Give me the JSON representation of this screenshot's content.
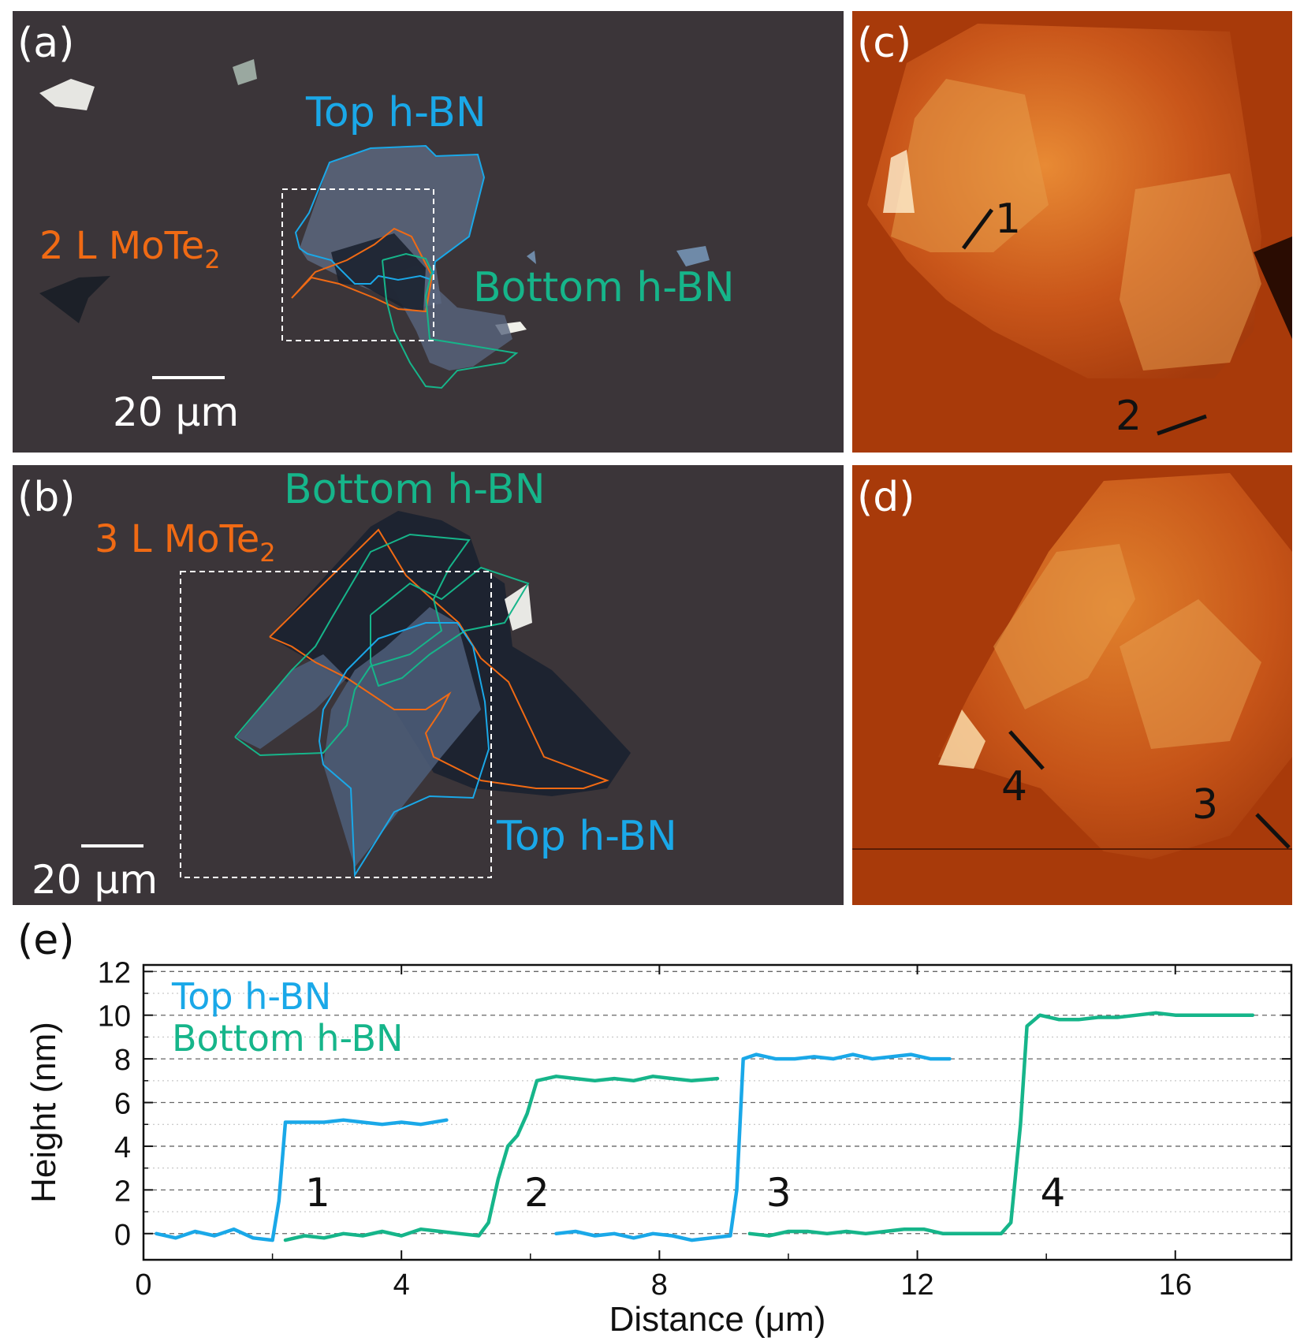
{
  "panels": {
    "a": {
      "letter": "(a)",
      "top_label": "Top h-BN",
      "mote_label": "2 L MoTe",
      "mote_sub": "2",
      "bottom_label": "Bottom h-BN",
      "scale": "20 μm"
    },
    "b": {
      "letter": "(b)",
      "bottom_label": "Bottom h-BN",
      "mote_label": "3 L MoTe",
      "mote_sub": "2",
      "top_label": "Top h-BN",
      "scale": "20 μm"
    },
    "c": {
      "letter": "(c)",
      "marker1": "1",
      "marker2": "2"
    },
    "d": {
      "letter": "(d)",
      "marker4": "4",
      "marker3": "3"
    },
    "e": {
      "letter": "(e)"
    }
  },
  "colors": {
    "top_hbn": "#1aa8e8",
    "bottom_hbn": "#16b58a",
    "mote2": "#f06a14",
    "optical_bg": "#3a3438",
    "afm_dark": "#a83a08",
    "afm_mid": "#d06418",
    "afm_light": "#f0a048"
  },
  "chart_data": {
    "type": "line",
    "xlabel": "Distance (μm)",
    "ylabel": "Height (nm)",
    "xlim": [
      0,
      17.8
    ],
    "ylim": [
      -1.2,
      12.3
    ],
    "xticks": [
      0,
      4,
      8,
      12,
      16
    ],
    "yticks": [
      0,
      2,
      4,
      6,
      8,
      10,
      12
    ],
    "grid": "horizontal dashed",
    "legend": {
      "placement": "top-left",
      "entries": [
        "Top h-BN",
        "Bottom h-BN"
      ]
    },
    "step_labels": [
      {
        "text": "1",
        "x": 2.7,
        "y": 1.9
      },
      {
        "text": "2",
        "x": 6.1,
        "y": 1.9
      },
      {
        "text": "3",
        "x": 9.85,
        "y": 1.9
      },
      {
        "text": "4",
        "x": 14.1,
        "y": 1.9
      }
    ],
    "series": [
      {
        "name": "Top h-BN",
        "segments": [
          [
            [
              0.2,
              0.0
            ],
            [
              0.5,
              -0.2
            ],
            [
              0.8,
              0.1
            ],
            [
              1.1,
              -0.1
            ],
            [
              1.4,
              0.2
            ],
            [
              1.7,
              -0.2
            ],
            [
              2.0,
              -0.3
            ],
            [
              2.1,
              1.5
            ],
            [
              2.2,
              5.1
            ],
            [
              2.5,
              5.1
            ],
            [
              2.8,
              5.1
            ],
            [
              3.1,
              5.2
            ],
            [
              3.4,
              5.1
            ],
            [
              3.7,
              5.0
            ],
            [
              4.0,
              5.1
            ],
            [
              4.3,
              5.0
            ],
            [
              4.7,
              5.2
            ]
          ],
          [
            [
              6.4,
              0.0
            ],
            [
              6.7,
              0.1
            ],
            [
              7.0,
              -0.1
            ],
            [
              7.3,
              0.0
            ],
            [
              7.6,
              -0.2
            ],
            [
              7.9,
              0.0
            ],
            [
              8.2,
              -0.1
            ],
            [
              8.5,
              -0.3
            ],
            [
              8.8,
              -0.2
            ],
            [
              9.1,
              -0.1
            ],
            [
              9.2,
              2.0
            ],
            [
              9.3,
              8.0
            ],
            [
              9.5,
              8.2
            ],
            [
              9.8,
              8.0
            ],
            [
              10.1,
              8.0
            ],
            [
              10.4,
              8.1
            ],
            [
              10.7,
              8.0
            ],
            [
              11.0,
              8.2
            ],
            [
              11.3,
              8.0
            ],
            [
              11.6,
              8.1
            ],
            [
              11.9,
              8.2
            ],
            [
              12.2,
              8.0
            ],
            [
              12.5,
              8.0
            ]
          ]
        ]
      },
      {
        "name": "Bottom h-BN",
        "segments": [
          [
            [
              2.2,
              -0.3
            ],
            [
              2.5,
              -0.1
            ],
            [
              2.8,
              -0.2
            ],
            [
              3.1,
              0.0
            ],
            [
              3.4,
              -0.1
            ],
            [
              3.7,
              0.1
            ],
            [
              4.0,
              -0.1
            ],
            [
              4.3,
              0.2
            ],
            [
              4.6,
              0.1
            ],
            [
              4.9,
              0.0
            ],
            [
              5.2,
              -0.1
            ],
            [
              5.35,
              0.5
            ],
            [
              5.5,
              2.5
            ],
            [
              5.65,
              4.0
            ],
            [
              5.8,
              4.5
            ],
            [
              5.95,
              5.5
            ],
            [
              6.1,
              7.0
            ],
            [
              6.4,
              7.2
            ],
            [
              6.7,
              7.1
            ],
            [
              7.0,
              7.0
            ],
            [
              7.3,
              7.1
            ],
            [
              7.6,
              7.0
            ],
            [
              7.9,
              7.2
            ],
            [
              8.2,
              7.1
            ],
            [
              8.5,
              7.0
            ],
            [
              8.9,
              7.1
            ]
          ],
          [
            [
              9.4,
              0.0
            ],
            [
              9.7,
              -0.1
            ],
            [
              10.0,
              0.1
            ],
            [
              10.3,
              0.1
            ],
            [
              10.6,
              0.0
            ],
            [
              10.9,
              0.1
            ],
            [
              11.2,
              0.0
            ],
            [
              11.5,
              0.1
            ],
            [
              11.8,
              0.2
            ],
            [
              12.1,
              0.2
            ],
            [
              12.4,
              0.0
            ],
            [
              12.7,
              0.0
            ],
            [
              13.0,
              0.0
            ],
            [
              13.3,
              0.0
            ],
            [
              13.45,
              0.5
            ],
            [
              13.6,
              5.0
            ],
            [
              13.7,
              9.5
            ],
            [
              13.9,
              10.0
            ],
            [
              14.2,
              9.8
            ],
            [
              14.5,
              9.8
            ],
            [
              14.8,
              9.9
            ],
            [
              15.1,
              9.9
            ],
            [
              15.4,
              10.0
            ],
            [
              15.7,
              10.1
            ],
            [
              16.0,
              10.0
            ],
            [
              16.3,
              10.0
            ],
            [
              16.6,
              10.0
            ],
            [
              16.9,
              10.0
            ],
            [
              17.2,
              10.0
            ]
          ]
        ]
      }
    ]
  }
}
